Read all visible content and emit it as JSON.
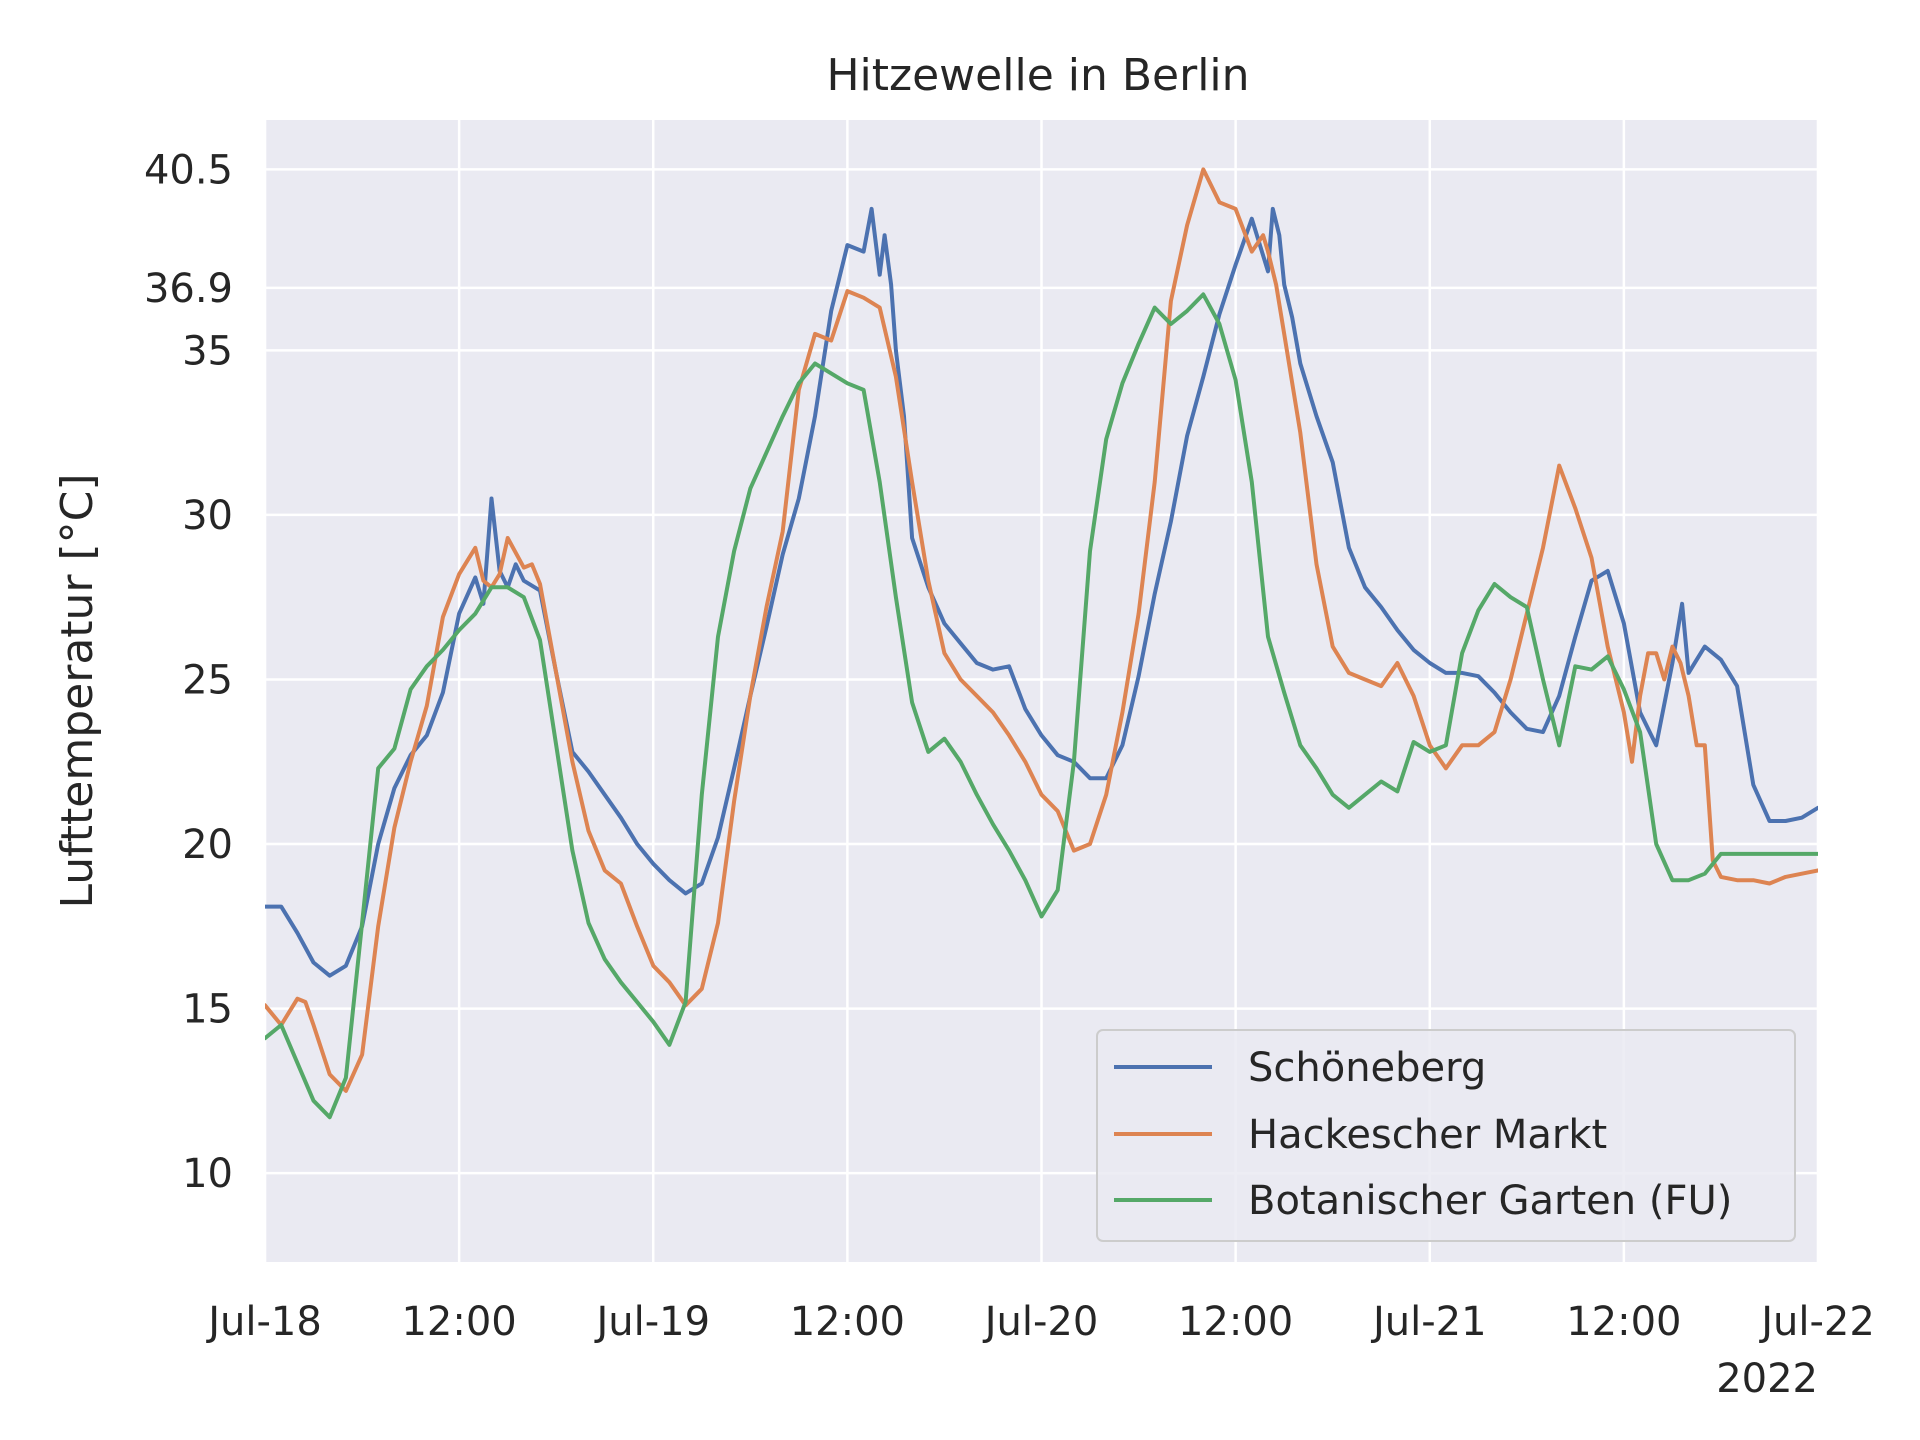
{
  "chart_data": {
    "type": "line",
    "title": "Hitzewelle in Berlin",
    "xlabel": "",
    "ylabel": "Lufttemperatur [°C]",
    "x_unit": "hours since Jul-18 00:00 (2022)",
    "xlim": [
      0,
      96
    ],
    "ylim": [
      7.3,
      42.0
    ],
    "yticks": [
      10,
      15,
      20,
      25,
      30,
      35,
      36.9,
      40.5
    ],
    "ytick_labels": [
      "10",
      "15",
      "20",
      "25",
      "30",
      "35",
      "36.9",
      "40.5"
    ],
    "xticks": [
      0,
      12,
      24,
      36,
      48,
      60,
      72,
      84,
      96
    ],
    "xtick_labels": [
      "Jul-18",
      "12:00",
      "Jul-19",
      "12:00",
      "Jul-20",
      "12:00",
      "Jul-21",
      "12:00",
      "Jul-22"
    ],
    "x_offset_label": "2022",
    "grid": true,
    "background": "#eaeaf2",
    "legend_position": "lower right",
    "series": [
      {
        "name": "Schöneberg",
        "color": "#4c72b0",
        "x": [
          0,
          1,
          2,
          3,
          4,
          5,
          6,
          7,
          8,
          9,
          10,
          11,
          12,
          13,
          13.5,
          14,
          14.5,
          15,
          15.5,
          16,
          17,
          18,
          19,
          20,
          21,
          22,
          23,
          24,
          25,
          26,
          27,
          28,
          29,
          30,
          31,
          32,
          33,
          34,
          35,
          36,
          37,
          37.5,
          38,
          38.3,
          38.7,
          39,
          39.5,
          40,
          41,
          42,
          43,
          44,
          45,
          46,
          47,
          48,
          49,
          50,
          51,
          52,
          53,
          54,
          55,
          56,
          57,
          58,
          59,
          60,
          61,
          62,
          62.3,
          62.7,
          63,
          63.5,
          64,
          65,
          66,
          67,
          68,
          69,
          70,
          71,
          72,
          73,
          74,
          75,
          76,
          77,
          78,
          79,
          80,
          81,
          82,
          83,
          84,
          85,
          86,
          87,
          87.6,
          88,
          88.5,
          89,
          90,
          91,
          92,
          93,
          94,
          95,
          96
        ],
        "values": [
          18.1,
          18.1,
          17.3,
          16.4,
          16.0,
          16.3,
          17.5,
          20.0,
          21.7,
          22.7,
          23.3,
          24.6,
          27.0,
          28.1,
          27.3,
          30.5,
          28.3,
          27.8,
          28.5,
          28.0,
          27.7,
          25.2,
          22.8,
          22.2,
          21.5,
          20.8,
          20.0,
          19.4,
          18.9,
          18.5,
          18.8,
          20.2,
          22.3,
          24.5,
          26.6,
          28.8,
          30.5,
          33.0,
          36.2,
          38.2,
          38.0,
          39.3,
          37.3,
          38.5,
          37.0,
          35.0,
          33.0,
          29.3,
          27.8,
          26.7,
          26.1,
          25.5,
          25.3,
          25.4,
          24.1,
          23.3,
          22.7,
          22.5,
          22.0,
          22.0,
          23.0,
          25.1,
          27.6,
          29.8,
          32.4,
          34.2,
          36.1,
          37.6,
          39.0,
          37.4,
          39.3,
          38.5,
          37.0,
          36.0,
          34.6,
          33.0,
          31.6,
          29.0,
          27.8,
          27.2,
          26.5,
          25.9,
          25.5,
          25.2,
          25.2,
          25.1,
          24.6,
          24.0,
          23.5,
          23.4,
          24.5,
          26.3,
          28.0,
          28.3,
          26.7,
          24.0,
          23.0,
          25.5,
          27.3,
          25.2,
          25.6,
          26.0,
          25.6,
          24.8,
          21.8,
          20.7,
          20.7,
          20.8,
          21.1
        ]
      },
      {
        "name": "Hackescher Markt",
        "color": "#dd8452",
        "x": [
          0,
          1,
          2,
          2.5,
          3,
          4,
          5,
          6,
          7,
          8,
          9,
          10,
          11,
          12,
          13,
          13.5,
          14,
          14.5,
          15,
          16,
          16.5,
          17,
          18,
          19,
          20,
          21,
          22,
          23,
          24,
          25,
          26,
          27,
          28,
          29,
          30,
          31,
          32,
          33,
          34,
          35,
          36,
          37,
          38,
          39,
          40,
          41,
          42,
          43,
          44,
          45,
          46,
          47,
          48,
          49,
          50,
          51,
          52,
          53,
          54,
          55,
          56,
          57,
          58,
          59,
          60,
          61,
          61.7,
          62,
          62.5,
          63,
          64,
          65,
          66,
          67,
          68,
          69,
          70,
          71,
          72,
          73,
          74,
          75,
          76,
          77,
          78,
          79,
          80,
          81,
          82,
          83,
          84,
          84.5,
          85,
          85.5,
          86,
          86.5,
          87,
          87.5,
          88,
          88.5,
          89,
          89.5,
          90,
          91,
          92,
          93,
          94,
          95,
          96
        ],
        "values": [
          15.1,
          14.5,
          15.3,
          15.2,
          14.5,
          13.0,
          12.5,
          13.6,
          17.5,
          20.5,
          22.5,
          24.2,
          26.9,
          28.2,
          29.0,
          28.0,
          27.8,
          28.2,
          29.3,
          28.4,
          28.5,
          27.9,
          25.2,
          22.5,
          20.4,
          19.2,
          18.8,
          17.5,
          16.3,
          15.8,
          15.1,
          15.6,
          17.6,
          21.3,
          24.5,
          27.2,
          29.5,
          33.8,
          35.5,
          35.3,
          36.8,
          36.6,
          36.3,
          34.2,
          31.0,
          28.0,
          25.8,
          25.0,
          24.5,
          24.0,
          23.3,
          22.5,
          21.5,
          21.0,
          19.8,
          20.0,
          21.5,
          24.0,
          27.0,
          31.0,
          36.5,
          38.8,
          40.5,
          39.5,
          39.3,
          38.0,
          38.5,
          38.0,
          37.0,
          35.5,
          32.5,
          28.5,
          26.0,
          25.2,
          25.0,
          24.8,
          25.5,
          24.5,
          23.0,
          22.3,
          23.0,
          23.0,
          23.4,
          25.0,
          27.0,
          29.0,
          31.5,
          30.2,
          28.7,
          26.0,
          24.0,
          22.5,
          24.5,
          25.8,
          25.8,
          25.0,
          26.0,
          25.5,
          24.5,
          23.0,
          23.0,
          19.5,
          19.0,
          18.9,
          18.9,
          18.8,
          19.0,
          19.1,
          19.2
        ]
      },
      {
        "name": "Botanischer Garten (FU)",
        "color": "#55a868",
        "x": [
          0,
          1,
          3,
          4,
          5,
          6,
          7,
          8,
          9,
          10,
          11,
          12,
          13,
          14,
          15,
          16,
          17,
          18,
          19,
          20,
          21,
          22,
          23,
          24,
          25,
          26,
          27,
          28,
          29,
          30,
          31,
          32,
          33,
          34,
          35,
          36,
          37,
          38,
          39,
          40,
          41,
          42,
          43,
          44,
          45,
          46,
          47,
          48,
          49,
          50,
          51,
          52,
          53,
          54,
          55,
          56,
          57,
          58,
          59,
          60,
          61,
          62,
          63,
          64,
          65,
          66,
          67,
          68,
          69,
          70,
          71,
          72,
          73,
          74,
          75,
          76,
          77,
          78,
          79,
          80,
          81,
          82,
          83,
          84,
          85,
          86,
          87,
          88,
          89,
          90,
          91,
          92,
          93,
          94,
          95,
          96
        ],
        "values": [
          14.1,
          14.5,
          12.2,
          11.7,
          12.9,
          17.6,
          22.3,
          22.9,
          24.7,
          25.4,
          25.9,
          26.5,
          27.0,
          27.8,
          27.8,
          27.5,
          26.2,
          23.0,
          19.8,
          17.6,
          16.5,
          15.8,
          15.2,
          14.6,
          13.9,
          15.2,
          21.5,
          26.3,
          28.9,
          30.8,
          31.9,
          33.0,
          34.0,
          34.6,
          34.3,
          34.0,
          33.8,
          31.0,
          27.5,
          24.3,
          22.8,
          23.2,
          22.5,
          21.5,
          20.6,
          19.8,
          18.9,
          17.8,
          18.6,
          22.5,
          28.9,
          32.3,
          34.0,
          35.2,
          36.3,
          35.8,
          36.2,
          36.7,
          35.8,
          34.1,
          31.0,
          26.3,
          24.6,
          23.0,
          22.3,
          21.5,
          21.1,
          21.5,
          21.9,
          21.6,
          23.1,
          22.8,
          23.0,
          25.8,
          27.1,
          27.9,
          27.5,
          27.2,
          25.0,
          23.0,
          25.4,
          25.3,
          25.7,
          24.7,
          23.4,
          20.0,
          18.9,
          18.9,
          19.1,
          19.7,
          19.7,
          19.7,
          19.7,
          19.7,
          19.7,
          19.7
        ]
      }
    ]
  }
}
